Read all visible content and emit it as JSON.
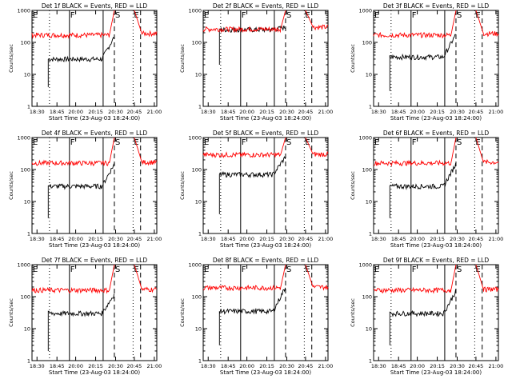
{
  "colors": {
    "events": "#000000",
    "lld": "#ff0000",
    "axis": "#000000",
    "background": "#ffffff"
  },
  "shared": {
    "xlabel": "Start Time (23-Aug-03 18:24:00)",
    "ylabel": "Counts/sec",
    "xtick_labels": [
      "18:30",
      "18:45",
      "20:00",
      "20:15",
      "20:30",
      "20:45",
      "21:00"
    ],
    "ytick_labels": [
      "1",
      "10",
      "100",
      "1000"
    ],
    "markers": [
      "E",
      "F",
      "S",
      "E"
    ]
  },
  "chart_data": [
    {
      "type": "line",
      "title": "Det 1f BLACK = Events, RED = LLD",
      "xlabel": "Start Time (23-Aug-03 18:24:00)",
      "ylabel": "Counts/sec",
      "yscale": "log",
      "ylim": [
        1,
        1000
      ],
      "series": [
        {
          "name": "Events",
          "color": "#000000",
          "start_value": 4,
          "level": 30,
          "end_value": 150
        },
        {
          "name": "LLD",
          "color": "#ff0000",
          "level": 170,
          "peak": 1000,
          "after": 190
        }
      ]
    },
    {
      "type": "line",
      "title": "Det 2f BLACK = Events, RED = LLD",
      "xlabel": "Start Time (23-Aug-03 18:24:00)",
      "ylabel": "Counts/sec",
      "yscale": "log",
      "ylim": [
        1,
        1000
      ],
      "series": [
        {
          "name": "Events",
          "color": "#000000",
          "start_value": 20,
          "level": 250,
          "end_value": 300
        },
        {
          "name": "LLD",
          "color": "#ff0000",
          "level": 260,
          "peak": 1000,
          "after": 300
        }
      ]
    },
    {
      "type": "line",
      "title": "Det 3f BLACK = Events, RED = LLD",
      "xlabel": "Start Time (23-Aug-03 18:24:00)",
      "ylabel": "Counts/sec",
      "yscale": "log",
      "ylim": [
        1,
        1000
      ],
      "series": [
        {
          "name": "Events",
          "color": "#000000",
          "start_value": 3,
          "level": 35,
          "end_value": 180
        },
        {
          "name": "LLD",
          "color": "#ff0000",
          "level": 170,
          "peak": 1000,
          "after": 190
        }
      ]
    },
    {
      "type": "line",
      "title": "Det 4f BLACK = Events, RED = LLD",
      "xlabel": "Start Time (23-Aug-03 18:24:00)",
      "ylabel": "Counts/sec",
      "yscale": "log",
      "ylim": [
        1,
        1000
      ],
      "series": [
        {
          "name": "Events",
          "color": "#000000",
          "start_value": 3,
          "level": 30,
          "end_value": 150
        },
        {
          "name": "LLD",
          "color": "#ff0000",
          "level": 160,
          "peak": 1000,
          "after": 170
        }
      ]
    },
    {
      "type": "line",
      "title": "Det 5f BLACK = Events, RED = LLD",
      "xlabel": "Start Time (23-Aug-03 18:24:00)",
      "ylabel": "Counts/sec",
      "yscale": "log",
      "ylim": [
        1,
        1000
      ],
      "series": [
        {
          "name": "Events",
          "color": "#000000",
          "start_value": 4,
          "level": 70,
          "end_value": 250
        },
        {
          "name": "LLD",
          "color": "#ff0000",
          "level": 290,
          "peak": 1000,
          "after": 300
        }
      ]
    },
    {
      "type": "line",
      "title": "Det 6f BLACK = Events, RED = LLD",
      "xlabel": "Start Time (23-Aug-03 18:24:00)",
      "ylabel": "Counts/sec",
      "yscale": "log",
      "ylim": [
        1,
        1000
      ],
      "series": [
        {
          "name": "Events",
          "color": "#000000",
          "start_value": 3,
          "level": 30,
          "end_value": 150
        },
        {
          "name": "LLD",
          "color": "#ff0000",
          "level": 160,
          "peak": 1000,
          "after": 170
        }
      ]
    },
    {
      "type": "line",
      "title": "Det 7f BLACK = Events, RED = LLD",
      "xlabel": "Start Time (23-Aug-03 18:24:00)",
      "ylabel": "Counts/sec",
      "yscale": "log",
      "ylim": [
        1,
        1000
      ],
      "series": [
        {
          "name": "Events",
          "color": "#000000",
          "start_value": 2,
          "level": 30,
          "end_value": 120
        },
        {
          "name": "LLD",
          "color": "#ff0000",
          "level": 160,
          "peak": 1000,
          "after": 170
        }
      ]
    },
    {
      "type": "line",
      "title": "Det 8f BLACK = Events, RED = LLD",
      "xlabel": "Start Time (23-Aug-03 18:24:00)",
      "ylabel": "Counts/sec",
      "yscale": "log",
      "ylim": [
        1,
        1000
      ],
      "series": [
        {
          "name": "Events",
          "color": "#000000",
          "start_value": 3,
          "level": 35,
          "end_value": 200
        },
        {
          "name": "LLD",
          "color": "#ff0000",
          "level": 190,
          "peak": 1000,
          "after": 200
        }
      ]
    },
    {
      "type": "line",
      "title": "Det 9f BLACK = Events, RED = LLD",
      "xlabel": "Start Time (23-Aug-03 18:24:00)",
      "ylabel": "Counts/sec",
      "yscale": "log",
      "ylim": [
        1,
        1000
      ],
      "series": [
        {
          "name": "Events",
          "color": "#000000",
          "start_value": 3,
          "level": 30,
          "end_value": 150
        },
        {
          "name": "LLD",
          "color": "#ff0000",
          "level": 160,
          "peak": 1000,
          "after": 170
        }
      ]
    }
  ]
}
